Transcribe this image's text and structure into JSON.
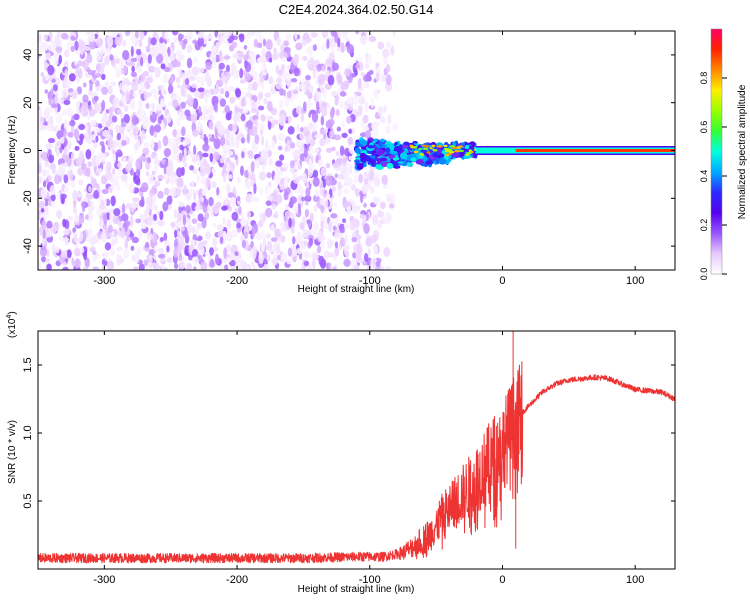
{
  "title": "C2E4.2024.364.02.50.G14",
  "chart_data": [
    {
      "type": "heatmap",
      "xlabel": "Height of straight line (km)",
      "ylabel": "Frequency (Hz)",
      "xlim": [
        -350,
        130
      ],
      "ylim": [
        -50,
        50
      ],
      "xticks": [
        -300,
        -200,
        -100,
        0,
        100
      ],
      "yticks": [
        -40,
        -20,
        0,
        20,
        40
      ],
      "colorbar": {
        "label": "Normalized spectral amplitude",
        "range": [
          0,
          1
        ],
        "ticks": [
          "0.0",
          "0.2",
          "0.4",
          "0.6",
          "0.8"
        ],
        "tick_values": [
          0.0,
          0.2,
          0.4,
          0.6,
          0.8
        ],
        "colors": [
          "#ffffff",
          "#e8c8ff",
          "#9955ff",
          "#5500ee",
          "#2a2aff",
          "#00aaff",
          "#00ffdd",
          "#33ff33",
          "#99ff00",
          "#ffee00",
          "#ff8800",
          "#ff2200",
          "#ff0066"
        ]
      },
      "regions": [
        {
          "description": "noise",
          "x_range": [
            -350,
            -90
          ],
          "y_range": [
            -50,
            50
          ],
          "amplitude": [
            0.0,
            0.15
          ]
        },
        {
          "description": "signal",
          "x_range": [
            -110,
            -20
          ],
          "y_center": 0,
          "amplitude": [
            0.2,
            0.5
          ]
        },
        {
          "description": "carrier",
          "x_range": [
            10,
            130
          ],
          "y_center": 0,
          "amplitude": 0.9
        }
      ]
    },
    {
      "type": "line",
      "xlabel": "Height of straight line (km)",
      "ylabel": "SNR (10 * v/v)",
      "y_multiplier": "(x10",
      "y_multiplier_exp": "4",
      "y_multiplier_close": ")",
      "xlim": [
        -350,
        130
      ],
      "ylim": [
        0,
        1.75
      ],
      "xticks": [
        -300,
        -200,
        -100,
        0,
        100
      ],
      "yticks": [
        "0.5",
        "1.0",
        "1.5"
      ],
      "ytick_values": [
        0.5,
        1.0,
        1.5
      ],
      "color": "#ee3333",
      "points": [
        [
          -350,
          0.08
        ],
        [
          -300,
          0.08
        ],
        [
          -250,
          0.08
        ],
        [
          -200,
          0.08
        ],
        [
          -150,
          0.08
        ],
        [
          -110,
          0.09
        ],
        [
          -90,
          0.09
        ],
        [
          -75,
          0.12
        ],
        [
          -65,
          0.18
        ],
        [
          -55,
          0.25
        ],
        [
          -45,
          0.4
        ],
        [
          -35,
          0.5
        ],
        [
          -25,
          0.6
        ],
        [
          -15,
          0.72
        ],
        [
          -5,
          0.85
        ],
        [
          0,
          0.9
        ],
        [
          5,
          1.0
        ],
        [
          10,
          1.1
        ],
        [
          15,
          1.15
        ],
        [
          20,
          1.2
        ],
        [
          30,
          1.3
        ],
        [
          40,
          1.36
        ],
        [
          50,
          1.39
        ],
        [
          60,
          1.4
        ],
        [
          70,
          1.41
        ],
        [
          80,
          1.4
        ],
        [
          90,
          1.36
        ],
        [
          100,
          1.32
        ],
        [
          110,
          1.31
        ],
        [
          120,
          1.3
        ],
        [
          130,
          1.25
        ]
      ],
      "spikes": [
        [
          8,
          1.75
        ],
        [
          10,
          0.15
        ]
      ]
    }
  ]
}
